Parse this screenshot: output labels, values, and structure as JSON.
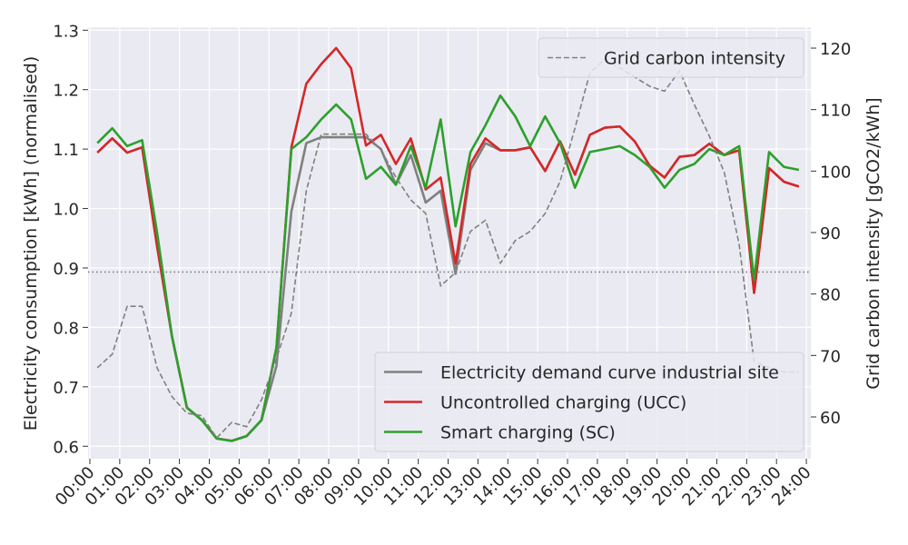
{
  "chart_data": {
    "type": "line",
    "xlabel": null,
    "ylabel": "Electricity consumption [kWh] (normalised)",
    "y2label": "Grid carbon intensity [gCO2/kWh]",
    "x": [
      0.25,
      0.75,
      1.25,
      1.75,
      2.25,
      2.75,
      3.25,
      3.75,
      4.25,
      4.75,
      5.25,
      5.75,
      6.25,
      6.75,
      7.25,
      7.75,
      8.25,
      8.75,
      9.25,
      9.75,
      10.25,
      10.75,
      11.25,
      11.75,
      12.25,
      12.75,
      13.25,
      13.75,
      14.25,
      14.75,
      15.25,
      15.75,
      16.25,
      16.75,
      17.25,
      17.75,
      18.25,
      18.75,
      19.25,
      19.75,
      20.25,
      20.75,
      21.25,
      21.75,
      22.25,
      22.75,
      23.25,
      23.75
    ],
    "series": [
      {
        "name": "Electricity demand curve industrial site",
        "color": "#808080",
        "style": "solid",
        "values": [
          1.094,
          1.118,
          1.094,
          1.103,
          0.937,
          0.785,
          0.665,
          0.644,
          0.613,
          0.609,
          0.617,
          0.644,
          0.735,
          0.995,
          1.11,
          1.12,
          1.12,
          1.12,
          1.12,
          1.1,
          1.04,
          1.09,
          1.01,
          1.03,
          0.89,
          1.065,
          1.11,
          1.098,
          1.098,
          1.103,
          1.063,
          1.113,
          1.057,
          1.124,
          1.136,
          1.138,
          1.113,
          1.072,
          1.052,
          1.087,
          1.09,
          1.109,
          1.09,
          1.098,
          0.858,
          1.068,
          1.045,
          1.037
        ]
      },
      {
        "name": "Uncontrolled charging (UCC)",
        "color": "#d62728",
        "style": "solid",
        "values": [
          1.094,
          1.118,
          1.094,
          1.103,
          0.937,
          0.785,
          0.665,
          0.644,
          0.613,
          0.609,
          0.617,
          0.644,
          0.766,
          1.103,
          1.21,
          1.243,
          1.27,
          1.236,
          1.106,
          1.124,
          1.075,
          1.118,
          1.032,
          1.052,
          0.907,
          1.075,
          1.118,
          1.098,
          1.098,
          1.103,
          1.063,
          1.113,
          1.057,
          1.124,
          1.136,
          1.138,
          1.113,
          1.072,
          1.052,
          1.087,
          1.09,
          1.109,
          1.09,
          1.098,
          0.858,
          1.068,
          1.045,
          1.037
        ]
      },
      {
        "name": "Smart charging (SC)",
        "color": "#2ca02c",
        "style": "solid",
        "values": [
          1.11,
          1.135,
          1.105,
          1.115,
          0.96,
          0.785,
          0.665,
          0.644,
          0.613,
          0.609,
          0.617,
          0.644,
          0.766,
          1.1,
          1.12,
          1.15,
          1.175,
          1.15,
          1.05,
          1.07,
          1.04,
          1.105,
          1.035,
          1.15,
          0.97,
          1.095,
          1.14,
          1.19,
          1.155,
          1.105,
          1.155,
          1.11,
          1.035,
          1.095,
          1.1,
          1.105,
          1.09,
          1.07,
          1.035,
          1.065,
          1.075,
          1.1,
          1.09,
          1.105,
          0.88,
          1.095,
          1.07,
          1.065
        ]
      },
      {
        "name": "Grid carbon intensity",
        "color": "#808080",
        "style": "dashed",
        "axis": "y2",
        "values": [
          68,
          70.2,
          78,
          78,
          68,
          63.3,
          60.6,
          60.2,
          56.6,
          59.1,
          58.4,
          62.8,
          69.5,
          76.9,
          96.8,
          106,
          106,
          106,
          106,
          103.5,
          99,
          95.3,
          93.1,
          81.3,
          83.5,
          90.2,
          92,
          85,
          88.7,
          90.2,
          93.1,
          98.3,
          107,
          116,
          118.2,
          116.8,
          115.3,
          113.8,
          113,
          116.3,
          110.8,
          105.7,
          99.8,
          88,
          69,
          68,
          67.3,
          67.3
        ]
      }
    ],
    "hline": 0.893,
    "xlim": [
      -0.06,
      24.15
    ],
    "xticks": [
      {
        "value": 0,
        "label": "00:00"
      },
      {
        "value": 1,
        "label": "01:00"
      },
      {
        "value": 2,
        "label": "02:00"
      },
      {
        "value": 3,
        "label": "03:00"
      },
      {
        "value": 4,
        "label": "04:00"
      },
      {
        "value": 5,
        "label": "05:00"
      },
      {
        "value": 6,
        "label": "06:00"
      },
      {
        "value": 7,
        "label": "07:00"
      },
      {
        "value": 8,
        "label": "08:00"
      },
      {
        "value": 9,
        "label": "09:00"
      },
      {
        "value": 10,
        "label": "10:00"
      },
      {
        "value": 11,
        "label": "11:00"
      },
      {
        "value": 12,
        "label": "12:00"
      },
      {
        "value": 13,
        "label": "13:00"
      },
      {
        "value": 14,
        "label": "14:00"
      },
      {
        "value": 15,
        "label": "15:00"
      },
      {
        "value": 16,
        "label": "16:00"
      },
      {
        "value": 17,
        "label": "17:00"
      },
      {
        "value": 18,
        "label": "18:00"
      },
      {
        "value": 19,
        "label": "19:00"
      },
      {
        "value": 20,
        "label": "20:00"
      },
      {
        "value": 21,
        "label": "21:00"
      },
      {
        "value": 22,
        "label": "22:00"
      },
      {
        "value": 23,
        "label": "23:00"
      },
      {
        "value": 24,
        "label": "24:00"
      }
    ],
    "ylim": [
      0.579,
      1.305
    ],
    "yticks": [
      0.6,
      0.7,
      0.8,
      0.9,
      {
        "value": 1,
        "label": "1.0"
      },
      1.1,
      1.2,
      1.3
    ],
    "y2lim": [
      53.2,
      123.4
    ],
    "y2ticks": [
      60,
      70,
      80,
      90,
      100,
      110,
      120
    ],
    "grid": true,
    "legend": "lower right",
    "legend_y2": "upper right"
  }
}
